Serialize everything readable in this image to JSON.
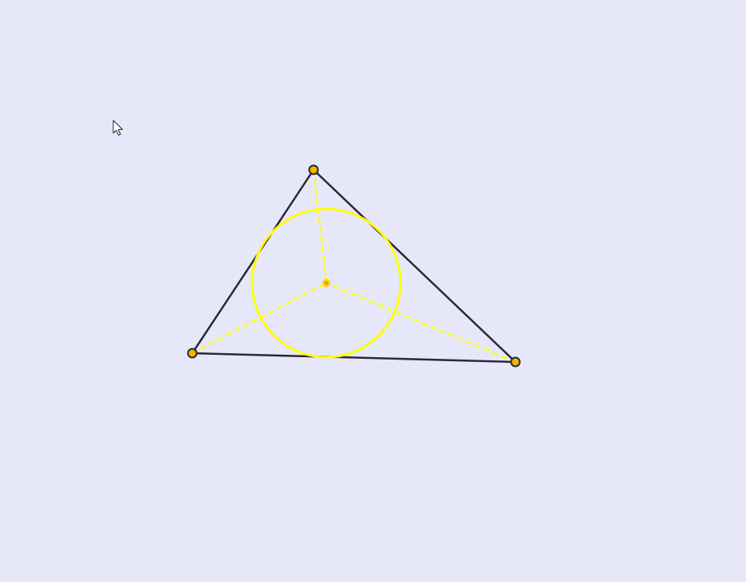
{
  "colors": {
    "background": "#e6e7f9",
    "triangle_stroke": "#2a2a33",
    "incircle_stroke": "#ffff00",
    "bisector_stroke": "#ffff00",
    "vertex_fill": "#f2b600",
    "incenter_fill": "#ffd400",
    "incenter_core": "#ff8800"
  },
  "icons": {
    "cursor": "mouse-pointer-arrow-icon"
  }
}
